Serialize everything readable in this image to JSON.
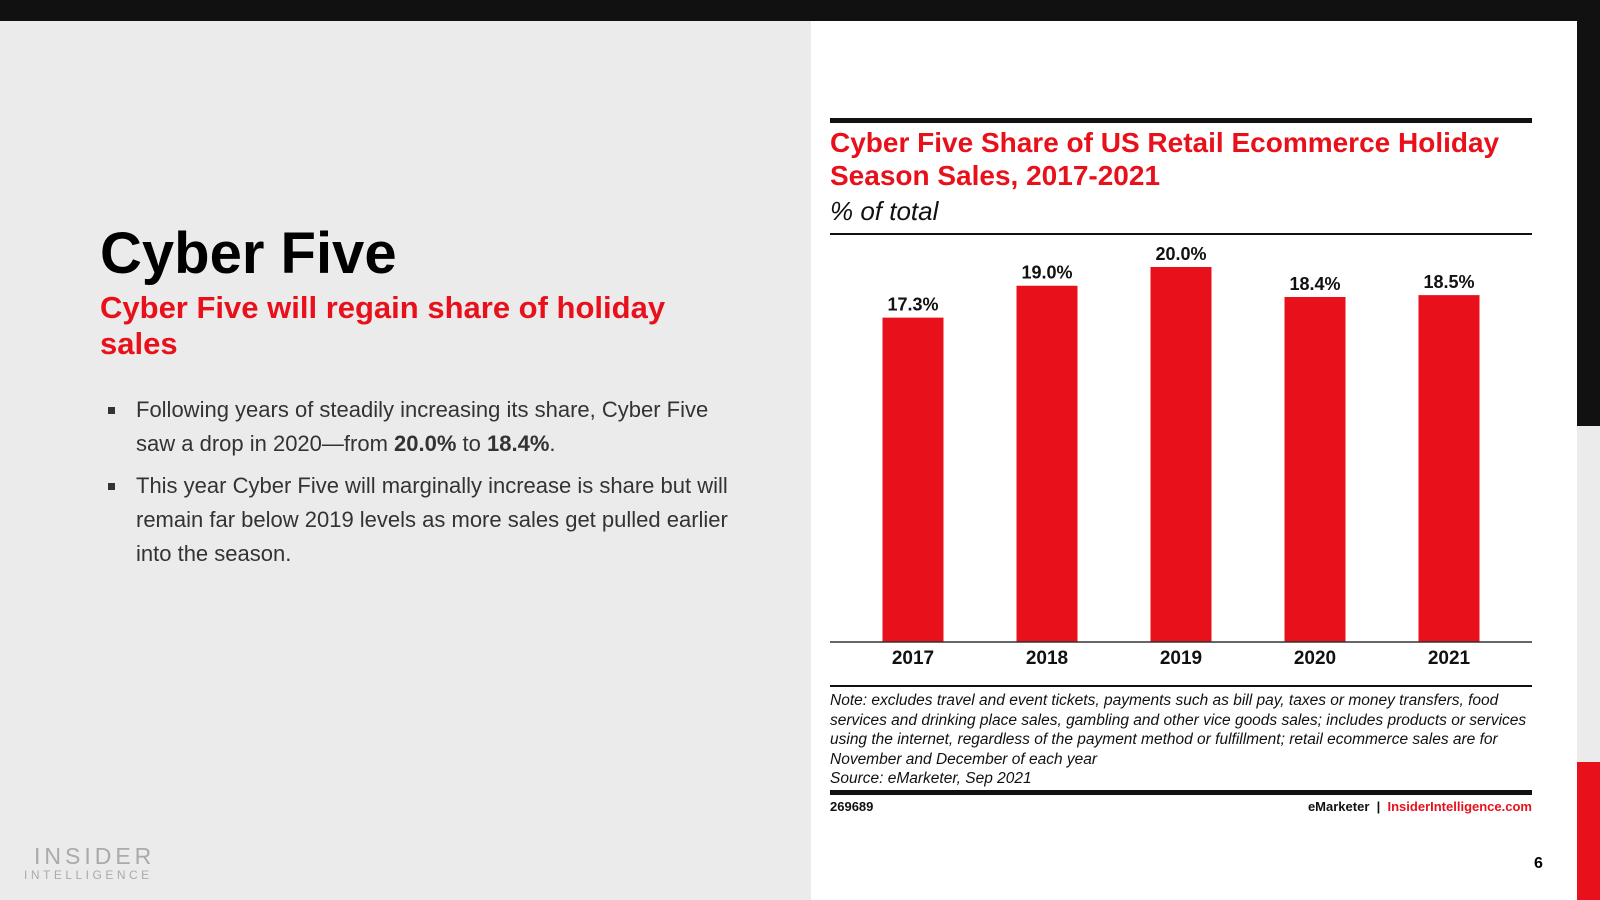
{
  "slide": {
    "heading": "Cyber Five",
    "subheading": "Cyber Five will regain share of holiday sales",
    "bullets": [
      [
        "Following years of steadily increasing its share, Cyber Five saw a drop in 2020—from ",
        "20.0%",
        " to ",
        "18.4%",
        "."
      ],
      [
        "This year Cyber Five will marginally increase is share but will remain far below 2019 levels as more sales get pulled earlier into the season."
      ]
    ],
    "logo": [
      "INSIDER",
      "INTELLIGENCE"
    ],
    "page_number": "6"
  },
  "chart_data": {
    "type": "bar",
    "title": "Cyber Five Share of US Retail Ecommerce Holiday Season Sales, 2017-2021",
    "subtitle": "% of total",
    "categories": [
      "2017",
      "2018",
      "2019",
      "2020",
      "2021"
    ],
    "values": [
      17.3,
      19.0,
      20.0,
      18.4,
      18.5
    ],
    "value_labels": [
      "17.3%",
      "19.0%",
      "20.0%",
      "18.4%",
      "18.5%"
    ],
    "color": "#e8111b",
    "ylim": [
      0,
      20
    ],
    "note": "Note: excludes travel and event tickets, payments such as bill pay, taxes or money transfers, food services and drinking place sales, gambling and other vice goods sales; includes products or services using the internet, regardless of the payment method or fulfillment; retail ecommerce sales are for November and December of each year",
    "source": "Source: eMarketer, Sep 2021",
    "chart_id": "269689",
    "brand": "eMarketer",
    "separator": "|",
    "website": "InsiderIntelligence.com"
  }
}
